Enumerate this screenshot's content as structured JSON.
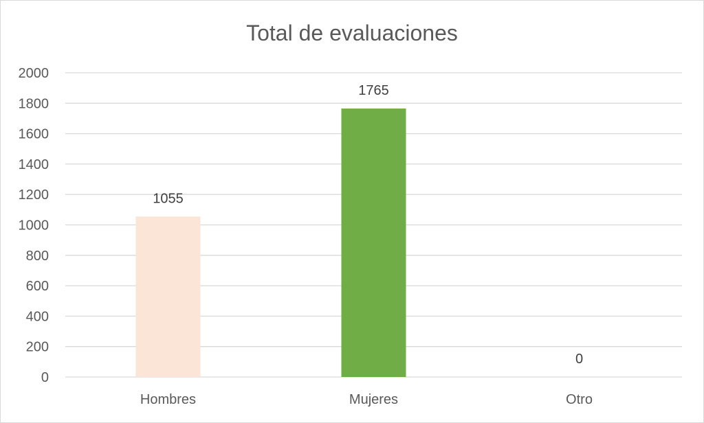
{
  "chart_data": {
    "type": "bar",
    "title": "Total de evaluaciones",
    "xlabel": "",
    "ylabel": "",
    "categories": [
      "Hombres",
      "Mujeres",
      "Otro"
    ],
    "values": [
      1055,
      1765,
      0
    ],
    "data_labels": [
      "1055",
      "1765",
      "0"
    ],
    "bar_colors": [
      "#fbe5d6",
      "#70ad47",
      "#a5a5a5"
    ],
    "ylim": [
      0,
      2000
    ],
    "yticks": [
      0,
      200,
      400,
      600,
      800,
      1000,
      1200,
      1400,
      1600,
      1800,
      2000
    ],
    "ytick_labels": [
      "0",
      "200",
      "400",
      "600",
      "800",
      "1000",
      "1200",
      "1400",
      "1600",
      "1800",
      "2000"
    ],
    "grid": true,
    "legend": "none",
    "gridline_color": "#d9d9d9"
  }
}
